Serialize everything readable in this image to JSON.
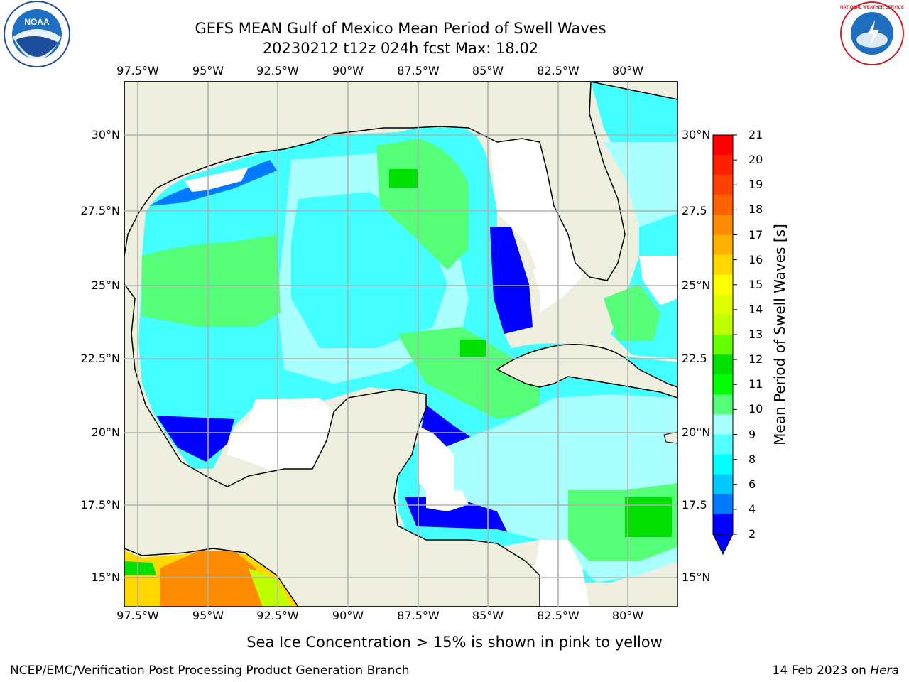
{
  "header": {
    "title_line1": "GEFS MEAN Gulf of Mexico Mean Period of Swell Waves",
    "title_line2": "20230212 t12z 024h fcst   Max: 18.02"
  },
  "map": {
    "lon_labels": [
      "97.5°W",
      "95°W",
      "92.5°W",
      "90°W",
      "87.5°W",
      "85°W",
      "82.5°W",
      "80°W"
    ],
    "lat_labels_left": [
      "30°N",
      "27.5°N",
      "25°N",
      "22.5°N",
      "20°N",
      "17.5°N",
      "15°N"
    ],
    "lat_labels_right": [
      "30°N",
      "27.5",
      "25°N",
      "22.5",
      "20°N",
      "17.5",
      "15°N"
    ],
    "land_color": "#efefdf",
    "no_data_color": "#ffffff"
  },
  "colorbar": {
    "title": "Mean Period of Swell Waves [s]",
    "tick_labels": [
      "21",
      "20",
      "19",
      "18",
      "17",
      "16",
      "15",
      "14",
      "13",
      "12",
      "11",
      "10",
      "9",
      "8",
      "6",
      "4",
      "2"
    ],
    "colors": [
      "#ff0000",
      "#ff2000",
      "#ff4000",
      "#ff6000",
      "#ff8c00",
      "#ffb000",
      "#ffd800",
      "#ffff00",
      "#e0ff00",
      "#c0ff00",
      "#66ff00",
      "#00e000",
      "#00ff00",
      "#55ff77",
      "#aaffff",
      "#55ffff",
      "#00ffff",
      "#00c8ff",
      "#0078ff",
      "#0000ff"
    ],
    "extend_color": "#0000ff"
  },
  "subtitle": "Sea Ice Concentration > 15% is shown in pink to yellow",
  "footer": {
    "left": "NCEP/EMC/Verification Post Processing Product Generation Branch",
    "right_date": "14 Feb 2023 on ",
    "right_host": "Hera"
  },
  "logos": {
    "noaa_text": "NOAA",
    "nws_text": "NATIONAL WEATHER SERVICE"
  }
}
